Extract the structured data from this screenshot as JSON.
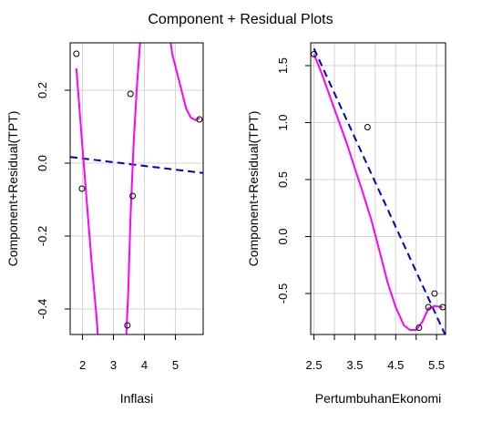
{
  "title": "Component + Residual Plots",
  "chart_data": [
    {
      "type": "scatter",
      "xlabel": "Inflasi",
      "ylabel": "Component+Residual(TPT)",
      "xlim": [
        1.6,
        5.9
      ],
      "ylim": [
        -0.47,
        0.33
      ],
      "xticks": [
        2,
        3,
        4,
        5
      ],
      "xtick_labels": [
        "2",
        "3",
        "4",
        "5"
      ],
      "yticks": [
        -0.4,
        -0.2,
        0.0,
        0.2
      ],
      "ytick_labels": [
        "-0.4",
        "-0.2",
        "0.0",
        "0.2"
      ],
      "grid": true,
      "points": [
        {
          "x": 1.8,
          "y": 0.3
        },
        {
          "x": 1.98,
          "y": -0.07
        },
        {
          "x": 3.45,
          "y": -0.445
        },
        {
          "x": 3.55,
          "y": 0.19
        },
        {
          "x": 3.62,
          "y": -0.09
        },
        {
          "x": 5.78,
          "y": 0.12
        }
      ],
      "linear_fit": {
        "color": "#0000CD",
        "dash": true,
        "points": [
          [
            1.6,
            0.017
          ],
          [
            5.9,
            -0.027
          ]
        ]
      },
      "smooth": {
        "color": "#FF00FF",
        "points": [
          [
            1.8,
            0.26
          ],
          [
            1.9,
            0.15
          ],
          [
            2.0,
            0.04
          ],
          [
            2.15,
            -0.12
          ],
          [
            2.3,
            -0.28
          ],
          [
            2.45,
            -0.42
          ],
          [
            2.52,
            -0.5
          ],
          [
            3.4,
            -0.5
          ],
          [
            3.48,
            -0.35
          ],
          [
            3.55,
            -0.15
          ],
          [
            3.65,
            0.05
          ],
          [
            3.75,
            0.2
          ],
          [
            3.85,
            0.32
          ],
          [
            3.9,
            0.36
          ],
          [
            4.8,
            0.36
          ],
          [
            4.9,
            0.3
          ],
          [
            5.05,
            0.25
          ],
          [
            5.2,
            0.2
          ],
          [
            5.35,
            0.15
          ],
          [
            5.5,
            0.125
          ],
          [
            5.65,
            0.118
          ],
          [
            5.78,
            0.123
          ]
        ]
      }
    },
    {
      "type": "scatter",
      "xlabel": "PertumbuhanEkonomi",
      "ylabel": "Component+Residual(TPT)",
      "xlim": [
        2.42,
        5.72
      ],
      "ylim": [
        -0.86,
        1.7
      ],
      "xticks": [
        2.5,
        3.0,
        3.5,
        4.0,
        4.5,
        5.0,
        5.5
      ],
      "xtick_labels": [
        "2.5",
        "",
        "3.5",
        "",
        "4.5",
        "",
        "5.5"
      ],
      "yticks": [
        -0.5,
        0.0,
        0.5,
        1.0,
        1.5
      ],
      "ytick_labels": [
        "-0.5",
        "0.0",
        "0.5",
        "1.0",
        "1.5"
      ],
      "grid": true,
      "points": [
        {
          "x": 2.5,
          "y": 1.6
        },
        {
          "x": 3.81,
          "y": 0.96
        },
        {
          "x": 5.07,
          "y": -0.8
        },
        {
          "x": 5.3,
          "y": -0.62
        },
        {
          "x": 5.45,
          "y": -0.5
        },
        {
          "x": 5.65,
          "y": -0.62
        }
      ],
      "linear_fit": {
        "color": "#0000CD",
        "dash": true,
        "points": [
          [
            2.5,
            1.65
          ],
          [
            5.72,
            -0.87
          ]
        ]
      },
      "smooth": {
        "color": "#FF00FF",
        "points": [
          [
            2.5,
            1.6
          ],
          [
            2.7,
            1.42
          ],
          [
            2.9,
            1.22
          ],
          [
            3.1,
            1.02
          ],
          [
            3.3,
            0.82
          ],
          [
            3.5,
            0.6
          ],
          [
            3.7,
            0.38
          ],
          [
            3.9,
            0.15
          ],
          [
            4.1,
            -0.12
          ],
          [
            4.3,
            -0.4
          ],
          [
            4.5,
            -0.62
          ],
          [
            4.7,
            -0.78
          ],
          [
            4.85,
            -0.82
          ],
          [
            5.0,
            -0.82
          ],
          [
            5.15,
            -0.75
          ],
          [
            5.3,
            -0.63
          ],
          [
            5.45,
            -0.61
          ],
          [
            5.65,
            -0.62
          ]
        ]
      }
    }
  ]
}
